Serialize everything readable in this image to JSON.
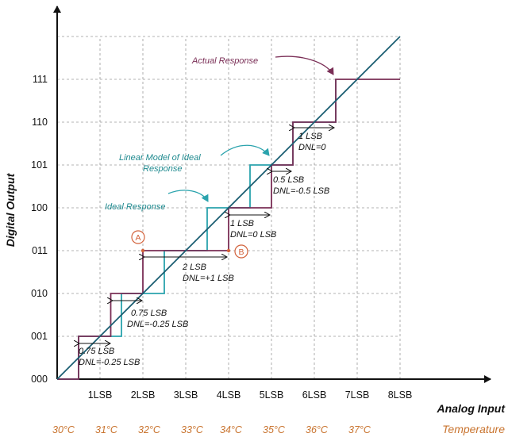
{
  "axes": {
    "y_title": "Digital Output",
    "x_title": "Analog Input",
    "y_ticks": [
      "000",
      "001",
      "010",
      "011",
      "100",
      "101",
      "110",
      "111"
    ],
    "x_ticks": [
      "1LSB",
      "2LSB",
      "3LSB",
      "4LSB",
      "5LSB",
      "6LSB",
      "7LSB",
      "8LSB"
    ]
  },
  "temperature": {
    "title": "Temperature",
    "values": [
      "30°C",
      "31°C",
      "32°C",
      "33°C",
      "34°C",
      "35°C",
      "36°C",
      "37°C"
    ]
  },
  "labels": {
    "actual": "Actual Response",
    "linear_line1": "Linear Model of Ideal",
    "linear_line2": "Response",
    "ideal": "Ideal Response",
    "point_a": "A",
    "point_b": "B"
  },
  "annotations": [
    {
      "width": "0.75 LSB",
      "dnl": "DNL=-0.25 LSB"
    },
    {
      "width": "0.75 LSB",
      "dnl": "DNL=-0.25 LSB"
    },
    {
      "width": "2 LSB",
      "dnl": "DNL=+1 LSB"
    },
    {
      "width": "1 LSB",
      "dnl": "DNL=0 LSB"
    },
    {
      "width": "0.5 LSB",
      "dnl": "DNL=-0.5 LSB"
    },
    {
      "width": "1 LSB",
      "dnl": "DNL=0"
    }
  ],
  "colors": {
    "actual": "#7a2e56",
    "ideal": "#2aa3ad",
    "linear": "#1b5e72",
    "temperature": "#c9742f",
    "grid": "#9a9a9a"
  },
  "chart_data": {
    "type": "line",
    "xlabel": "Analog Input",
    "ylabel": "Digital Output",
    "xlim": [
      0,
      8
    ],
    "ylim": [
      0,
      8
    ],
    "y_codes": [
      "000",
      "001",
      "010",
      "011",
      "100",
      "101",
      "110",
      "111"
    ],
    "series": [
      {
        "name": "Actual Response",
        "transitions_lsb": [
          0.5,
          1.25,
          2.0,
          4.0,
          5.0,
          5.5,
          6.5
        ]
      },
      {
        "name": "Ideal Response",
        "transitions_lsb": [
          0.5,
          1.5,
          2.5,
          3.5,
          4.5,
          5.5,
          6.5
        ]
      },
      {
        "name": "Linear Model of Ideal Response",
        "x": [
          0,
          8
        ],
        "y": [
          0,
          8
        ]
      }
    ]
  }
}
